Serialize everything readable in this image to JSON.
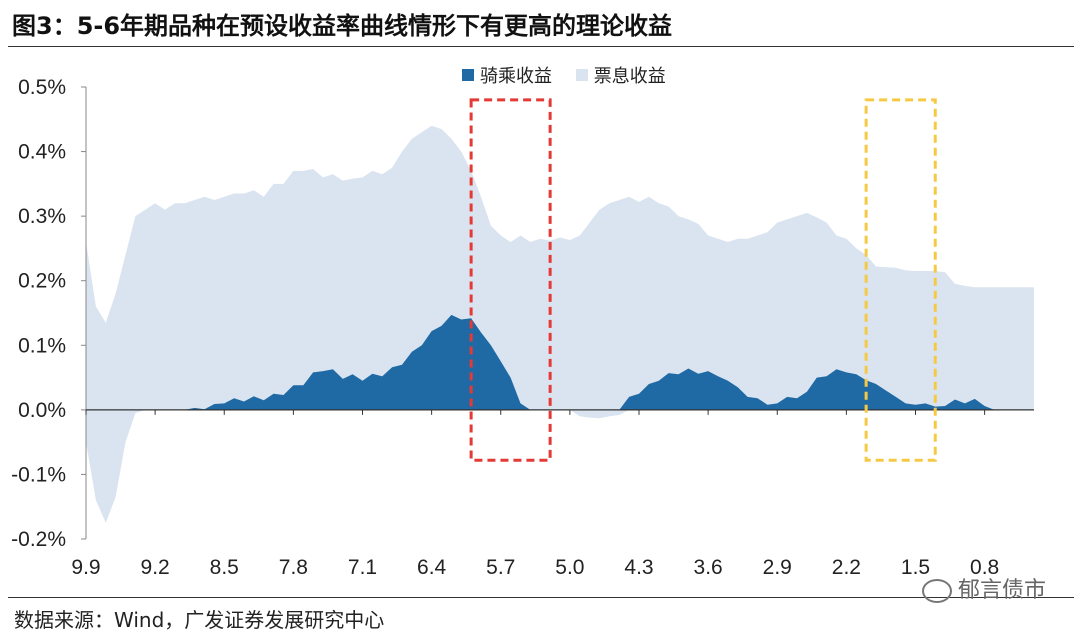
{
  "header": {
    "title": "图3：5-6年期品种在预设收益率曲线情形下有更高的理论收益"
  },
  "footer": {
    "source": "数据来源：Wind，广发证券发展研究中心",
    "watermark": "郁言债市"
  },
  "colors": {
    "rolldown": "#1f6aa5",
    "coupon": "#dae4f0",
    "red_box": "#e53935",
    "yellow_box": "#f6c945"
  },
  "chart_data": {
    "type": "area",
    "title": "",
    "xlabel": "",
    "ylabel": "",
    "ylim": [
      -0.2,
      0.5
    ],
    "y_unit": "%",
    "yticks": [
      "0.5%",
      "0.4%",
      "0.3%",
      "0.2%",
      "0.1%",
      "0.0%",
      "-0.1%",
      "-0.2%"
    ],
    "xticks": [
      "9.9",
      "9.2",
      "8.5",
      "7.8",
      "7.1",
      "6.4",
      "5.7",
      "5.0",
      "4.3",
      "3.6",
      "2.9",
      "2.2",
      "1.5",
      "0.8"
    ],
    "x_axis_direction": "decreasing remaining maturity (years), step 0.1",
    "legend": {
      "position": "top-center"
    },
    "grid": false,
    "x": [
      9.9,
      9.8,
      9.7,
      9.6,
      9.5,
      9.4,
      9.3,
      9.2,
      9.1,
      9.0,
      8.9,
      8.8,
      8.7,
      8.6,
      8.5,
      8.4,
      8.3,
      8.2,
      8.1,
      8.0,
      7.9,
      7.8,
      7.7,
      7.6,
      7.5,
      7.4,
      7.3,
      7.2,
      7.1,
      7.0,
      6.9,
      6.8,
      6.7,
      6.6,
      6.5,
      6.4,
      6.3,
      6.2,
      6.1,
      6.0,
      5.9,
      5.8,
      5.7,
      5.6,
      5.5,
      5.4,
      5.3,
      5.2,
      5.1,
      5.0,
      4.9,
      4.8,
      4.7,
      4.6,
      4.5,
      4.4,
      4.3,
      4.2,
      4.1,
      4.0,
      3.9,
      3.8,
      3.7,
      3.6,
      3.5,
      3.4,
      3.3,
      3.2,
      3.1,
      3.0,
      2.9,
      2.8,
      2.7,
      2.6,
      2.5,
      2.4,
      2.3,
      2.2,
      2.1,
      2.0,
      1.9,
      1.8,
      1.7,
      1.6,
      1.5,
      1.4,
      1.3,
      1.2,
      1.1,
      1.0,
      0.9,
      0.8,
      0.7,
      0.6,
      0.5,
      0.4,
      0.3
    ],
    "series": [
      {
        "name": "骑乘收益",
        "values": [
          0.0,
          0.0,
          0.0,
          0.0,
          0.0,
          0.0,
          0.0,
          0.0,
          0.0,
          -0.001,
          0.0,
          0.003,
          0.001,
          0.009,
          0.01,
          0.018,
          0.013,
          0.021,
          0.015,
          0.025,
          0.023,
          0.038,
          0.038,
          0.058,
          0.06,
          0.063,
          0.048,
          0.055,
          0.045,
          0.056,
          0.052,
          0.066,
          0.07,
          0.09,
          0.1,
          0.122,
          0.13,
          0.147,
          0.14,
          0.142,
          0.12,
          0.1,
          0.075,
          0.05,
          0.01,
          0.0,
          0.0,
          0.0,
          0.0,
          0.0,
          0.0,
          0.0,
          0.0,
          0.0,
          0.0,
          0.02,
          0.025,
          0.04,
          0.045,
          0.057,
          0.055,
          0.064,
          0.056,
          0.06,
          0.052,
          0.045,
          0.035,
          0.02,
          0.018,
          0.008,
          0.01,
          0.02,
          0.018,
          0.028,
          0.05,
          0.052,
          0.063,
          0.058,
          0.055,
          0.046,
          0.04,
          0.03,
          0.02,
          0.01,
          0.008,
          0.01,
          0.005,
          0.006,
          0.016,
          0.01,
          0.017,
          0.006,
          0.0,
          0.0,
          0.0,
          0.0,
          0.0
        ]
      },
      {
        "name": "票息收益",
        "values": [
          0.26,
          0.16,
          0.135,
          0.18,
          0.24,
          0.3,
          0.31,
          0.32,
          0.31,
          0.32,
          0.32,
          0.325,
          0.33,
          0.325,
          0.33,
          0.335,
          0.335,
          0.34,
          0.33,
          0.35,
          0.35,
          0.37,
          0.37,
          0.373,
          0.36,
          0.365,
          0.355,
          0.358,
          0.36,
          0.37,
          0.365,
          0.375,
          0.4,
          0.42,
          0.43,
          0.44,
          0.435,
          0.42,
          0.4,
          0.37,
          0.33,
          0.285,
          0.27,
          0.26,
          0.27,
          0.26,
          0.265,
          0.262,
          0.267,
          0.263,
          0.27,
          0.29,
          0.31,
          0.32,
          0.325,
          0.33,
          0.322,
          0.33,
          0.32,
          0.315,
          0.3,
          0.295,
          0.288,
          0.27,
          0.265,
          0.26,
          0.265,
          0.265,
          0.27,
          0.275,
          0.29,
          0.295,
          0.3,
          0.305,
          0.298,
          0.29,
          0.27,
          0.265,
          0.25,
          0.24,
          0.222,
          0.221,
          0.22,
          0.216,
          0.215,
          0.215,
          0.215,
          0.213,
          0.195,
          0.192,
          0.19,
          0.19,
          0.19,
          0.19,
          0.19,
          0.19,
          0.19
        ]
      }
    ],
    "coupon_negative_segment_note": "",
    "highlight_boxes": [
      {
        "color": "red",
        "x_range": [
          6.0,
          5.2
        ],
        "y_range": [
          -0.078,
          0.48
        ]
      },
      {
        "color": "yellow",
        "x_range": [
          2.0,
          1.3
        ],
        "y_range": [
          -0.078,
          0.48
        ]
      }
    ]
  }
}
